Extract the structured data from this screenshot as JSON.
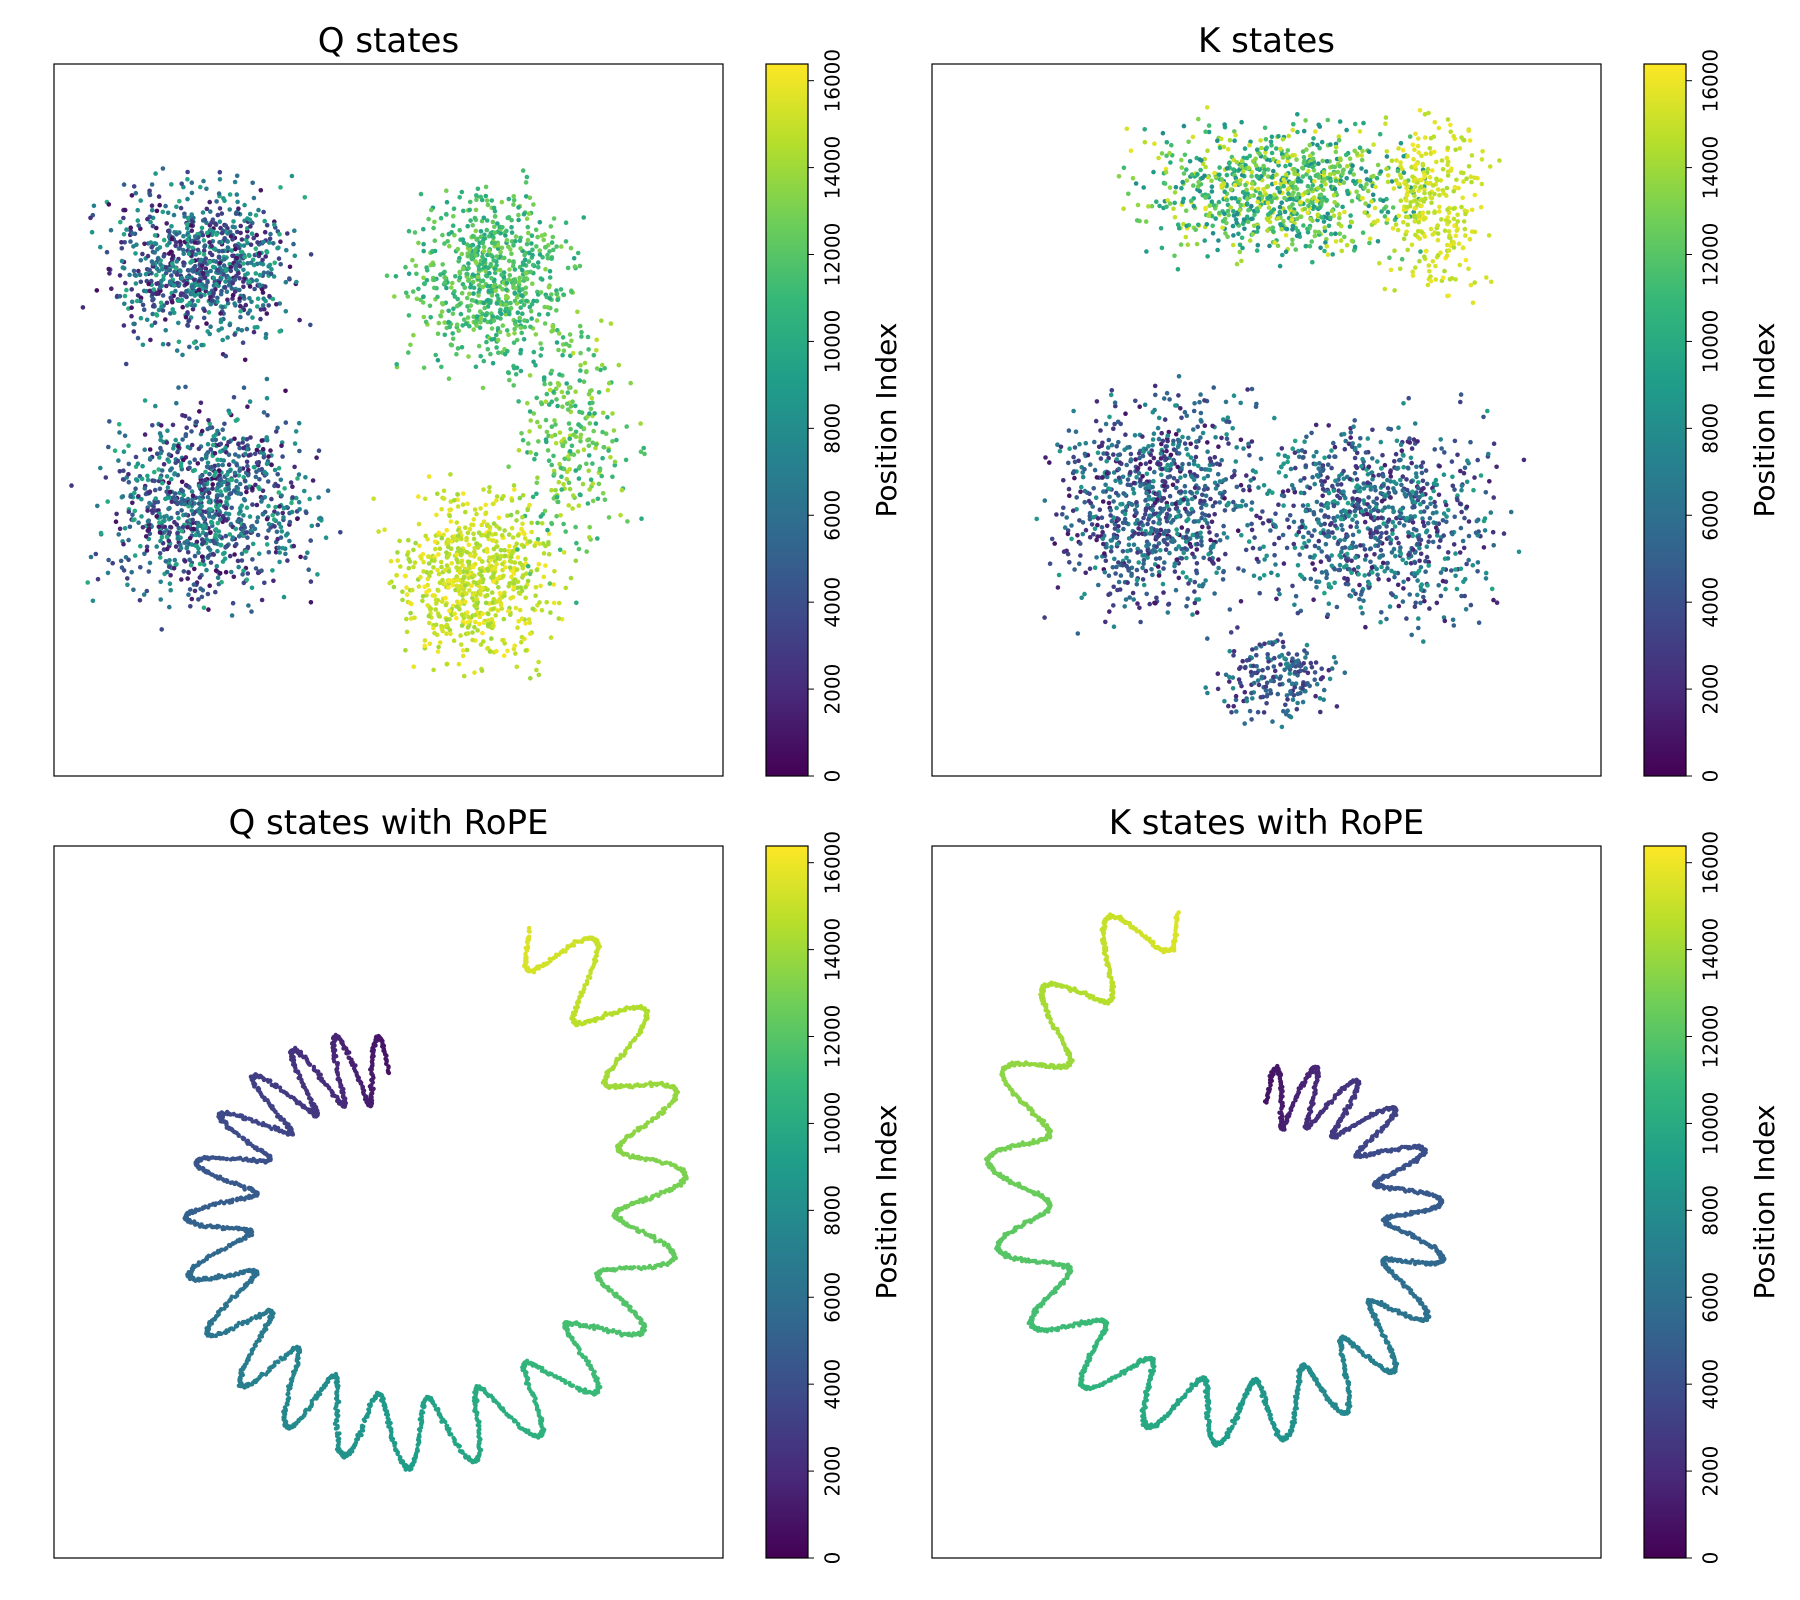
{
  "chart_data": [
    {
      "type": "scatter",
      "title": "Q states",
      "xlabel": "",
      "ylabel": "",
      "grid": false,
      "colormap": "viridis",
      "structure": "clouds",
      "colorbar": {
        "label": "Position Index",
        "min": 0,
        "max": 16384,
        "ticks": [
          "0",
          "2000",
          "4000",
          "6000",
          "8000",
          "10000",
          "12000",
          "14000",
          "16000"
        ]
      }
    },
    {
      "type": "scatter",
      "title": "K states",
      "xlabel": "",
      "ylabel": "",
      "grid": false,
      "colormap": "viridis",
      "structure": "clouds",
      "colorbar": {
        "label": "Position Index",
        "min": 0,
        "max": 16384,
        "ticks": [
          "0",
          "2000",
          "4000",
          "6000",
          "8000",
          "10000",
          "12000",
          "14000",
          "16000"
        ]
      }
    },
    {
      "type": "scatter",
      "title": "Q states with RoPE",
      "xlabel": "",
      "ylabel": "",
      "grid": false,
      "colormap": "viridis",
      "structure": "wavy-spiral",
      "colorbar": {
        "label": "Position Index",
        "min": 0,
        "max": 16384,
        "ticks": [
          "0",
          "2000",
          "4000",
          "6000",
          "8000",
          "10000",
          "12000",
          "14000",
          "16000"
        ]
      }
    },
    {
      "type": "scatter",
      "title": "K states with RoPE",
      "xlabel": "",
      "ylabel": "",
      "grid": false,
      "colormap": "viridis",
      "structure": "wavy-spiral",
      "colorbar": {
        "label": "Position Index",
        "min": 0,
        "max": 16384,
        "ticks": [
          "0",
          "2000",
          "4000",
          "6000",
          "8000",
          "10000",
          "12000",
          "14000",
          "16000"
        ]
      }
    }
  ]
}
